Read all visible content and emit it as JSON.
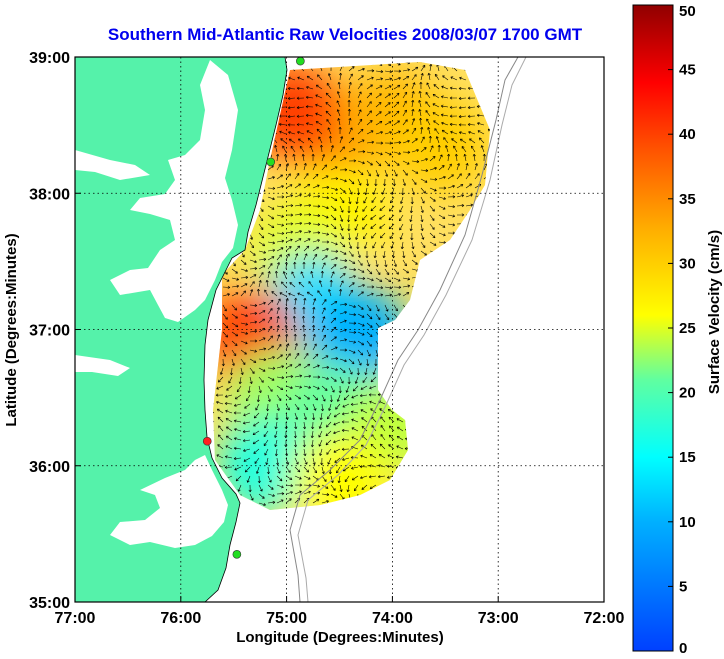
{
  "chart_data": {
    "type": "heatmap",
    "title": "Southern Mid-Atlantic Raw Velocities 2008/03/07 1700 GMT",
    "xlabel": "Longitude (Degrees:Minutes)",
    "ylabel": "Latitude (Degrees:Minutes)",
    "x_ticks": [
      {
        "value": -77,
        "label": "77:00"
      },
      {
        "value": -76,
        "label": "76:00"
      },
      {
        "value": -75,
        "label": "75:00"
      },
      {
        "value": -74,
        "label": "74:00"
      },
      {
        "value": -73,
        "label": "73:00"
      },
      {
        "value": -72,
        "label": "72:00"
      }
    ],
    "y_ticks": [
      {
        "value": 35,
        "label": "35:00"
      },
      {
        "value": 36,
        "label": "36:00"
      },
      {
        "value": 37,
        "label": "37:00"
      },
      {
        "value": 38,
        "label": "38:00"
      },
      {
        "value": 39,
        "label": "39:00"
      }
    ],
    "xlim": [
      -77,
      -72
    ],
    "ylim": [
      35,
      39
    ],
    "grid": true,
    "colorbar": {
      "label": "Surface Velocity (cm/s)",
      "range": [
        0,
        50
      ],
      "ticks": [
        0,
        5,
        10,
        15,
        20,
        25,
        30,
        35,
        40,
        45,
        50
      ],
      "colormap": "jet"
    },
    "land_color": "#55f2aa",
    "stations": [
      {
        "lon": -74.87,
        "lat": 38.97,
        "color": "#22dd22"
      },
      {
        "lon": -75.15,
        "lat": 38.23,
        "color": "#22dd22"
      },
      {
        "lon": -75.75,
        "lat": 36.18,
        "color": "#ff2020"
      },
      {
        "lon": -75.47,
        "lat": 35.35,
        "color": "#22dd22"
      }
    ],
    "velocity_regions": [
      {
        "lon": -74.55,
        "lat": 38.45,
        "speed": 35
      },
      {
        "lon": -74.0,
        "lat": 38.55,
        "speed": 32
      },
      {
        "lon": -73.55,
        "lat": 38.35,
        "speed": 30
      },
      {
        "lon": -74.95,
        "lat": 38.6,
        "speed": 40
      },
      {
        "lon": -74.5,
        "lat": 37.85,
        "speed": 27
      },
      {
        "lon": -74.9,
        "lat": 37.55,
        "speed": 25
      },
      {
        "lon": -74.75,
        "lat": 37.2,
        "speed": 13
      },
      {
        "lon": -74.3,
        "lat": 36.95,
        "speed": 10
      },
      {
        "lon": -75.35,
        "lat": 36.95,
        "speed": 40
      },
      {
        "lon": -75.1,
        "lat": 36.5,
        "speed": 23
      },
      {
        "lon": -74.55,
        "lat": 36.4,
        "speed": 21
      },
      {
        "lon": -74.0,
        "lat": 36.3,
        "speed": 24
      },
      {
        "lon": -75.2,
        "lat": 36.0,
        "speed": 17
      },
      {
        "lon": -74.5,
        "lat": 35.9,
        "speed": 26
      }
    ]
  }
}
